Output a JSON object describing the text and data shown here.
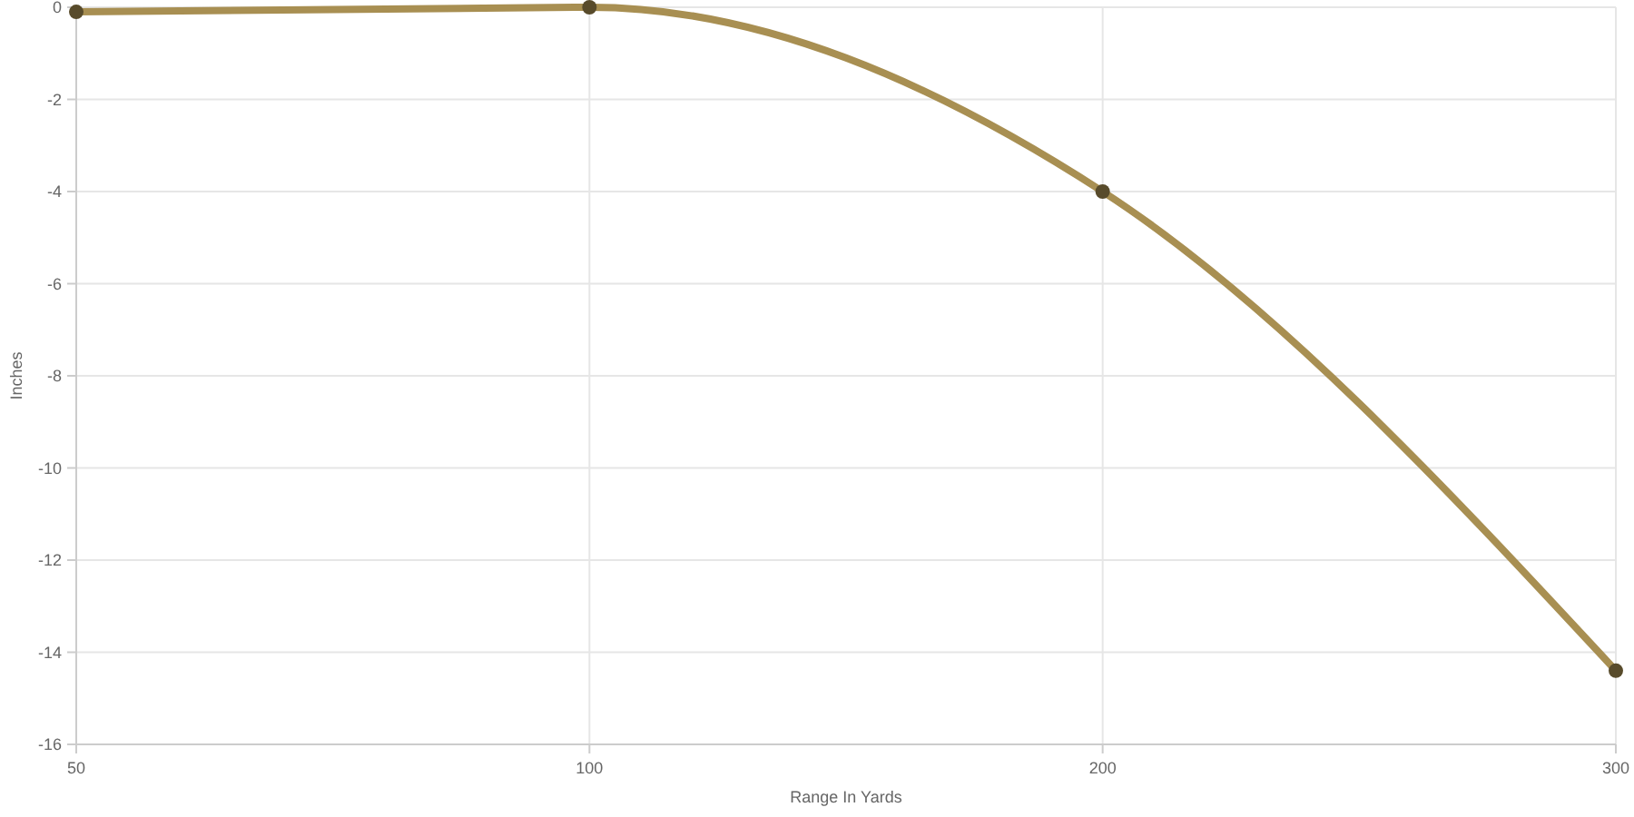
{
  "chart_data": {
    "type": "line",
    "xlabel": "Range In Yards",
    "ylabel": "Inches",
    "categories": [
      "50",
      "100",
      "200",
      "300"
    ],
    "series": [
      {
        "color": "#a88f52",
        "values": [
          -0.1,
          0,
          -4,
          -14.4
        ]
      }
    ],
    "ylim": [
      -16,
      0
    ],
    "yticks": [
      -16,
      -14,
      -12,
      -10,
      -8,
      -6,
      -4,
      -2,
      0
    ],
    "grid": true,
    "marker": "circle",
    "line_style": "solid"
  }
}
